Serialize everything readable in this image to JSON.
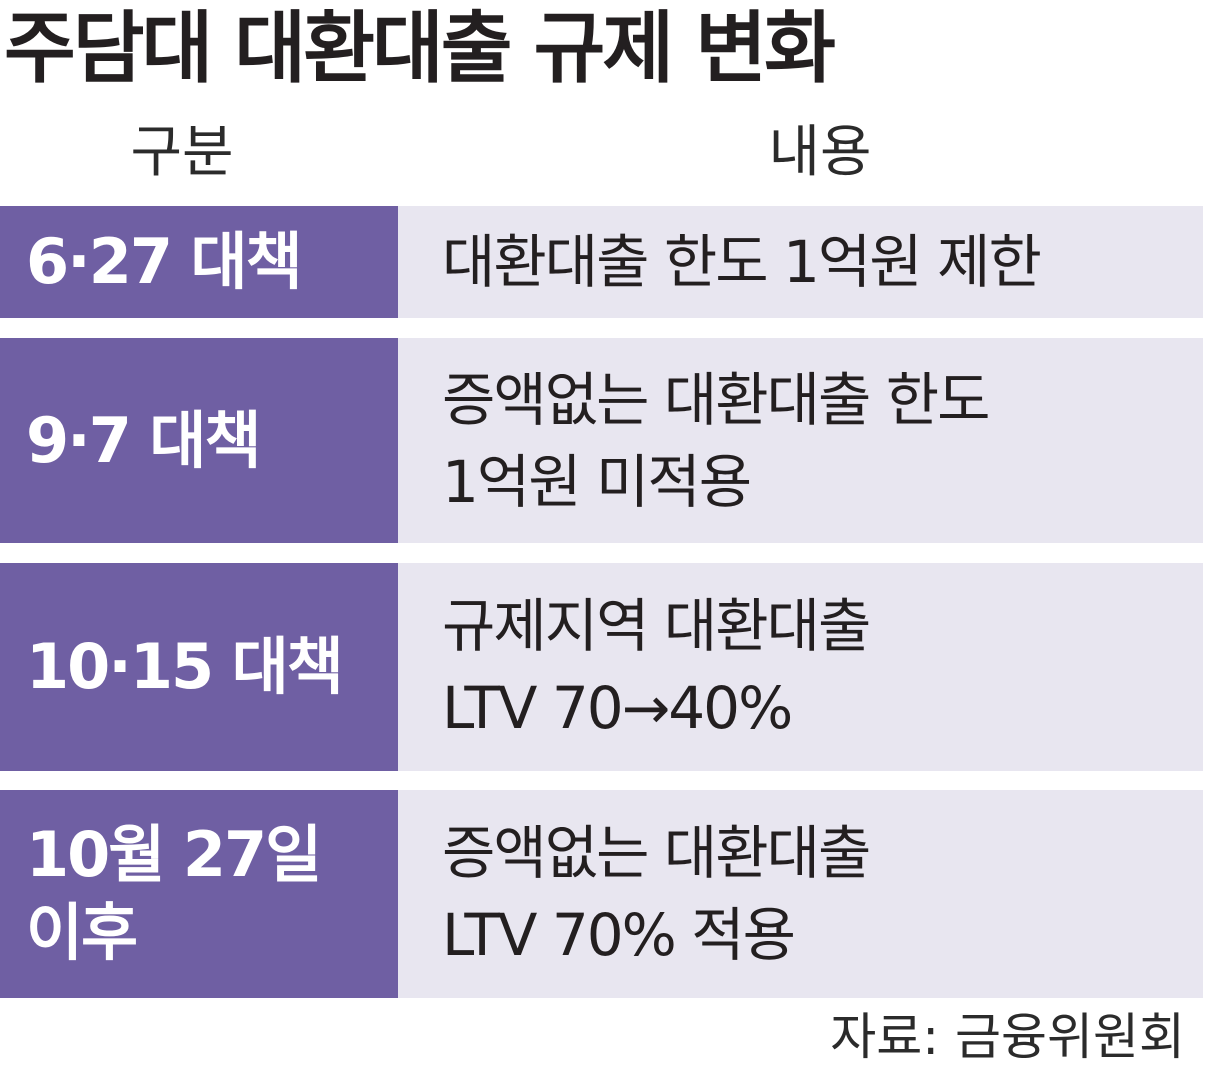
{
  "title": "주담대 대환대출 규제 변화",
  "table": {
    "headers": {
      "category": "구분",
      "content": "내용"
    },
    "rows": [
      {
        "label": [
          "6·27 대책"
        ],
        "content": [
          "대환대출 한도 1억원 제한"
        ]
      },
      {
        "label": [
          "9·7 대책"
        ],
        "content": [
          "증액없는 대환대출 한도",
          "1억원 미적용"
        ]
      },
      {
        "label": [
          "10·15 대책"
        ],
        "content": [
          "규제지역 대환대출",
          "LTV 70→40%"
        ]
      },
      {
        "label": [
          "10월 27일",
          "이후"
        ],
        "content": [
          "증액없는 대환대출",
          "LTV 70% 적용"
        ]
      }
    ]
  },
  "source": "자료: 금융위원회",
  "colors": {
    "label_bg": "#6f5fa3",
    "content_bg": "#e8e6f0",
    "text": "#231f20"
  }
}
